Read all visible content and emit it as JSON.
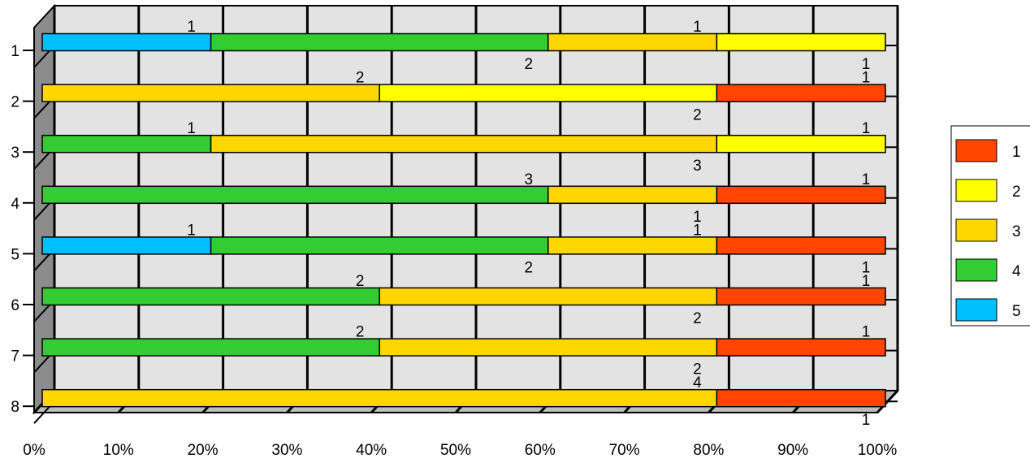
{
  "chart_data": {
    "type": "bar",
    "orientation": "horizontal",
    "stacked": "percent",
    "three_d": true,
    "categories": [
      "1",
      "2",
      "3",
      "4",
      "5",
      "6",
      "7",
      "8"
    ],
    "series": [
      {
        "name": "1",
        "color": "#FF4500",
        "values": [
          0,
          1,
          0,
          1,
          1,
          1,
          1,
          1
        ]
      },
      {
        "name": "2",
        "color": "#FFFF00",
        "values": [
          1,
          2,
          1,
          0,
          0,
          0,
          0,
          0
        ]
      },
      {
        "name": "3",
        "color": "#FFD700",
        "values": [
          1,
          2,
          3,
          1,
          1,
          2,
          2,
          4
        ]
      },
      {
        "name": "4",
        "color": "#33CC33",
        "values": [
          2,
          0,
          1,
          3,
          2,
          2,
          2,
          0
        ]
      },
      {
        "name": "5",
        "color": "#00BFFF",
        "values": [
          1,
          0,
          0,
          0,
          1,
          0,
          0,
          0
        ]
      }
    ],
    "x_ticks": [
      "0%",
      "10%",
      "20%",
      "30%",
      "40%",
      "50%",
      "60%",
      "70%",
      "80%",
      "90%",
      "100%"
    ],
    "xlim": [
      0,
      100
    ],
    "grid": true,
    "legend": "right",
    "colors": {
      "wall": "#E3E3E3",
      "floor": "#BDBDBD",
      "side": "#8C8C8C"
    }
  }
}
